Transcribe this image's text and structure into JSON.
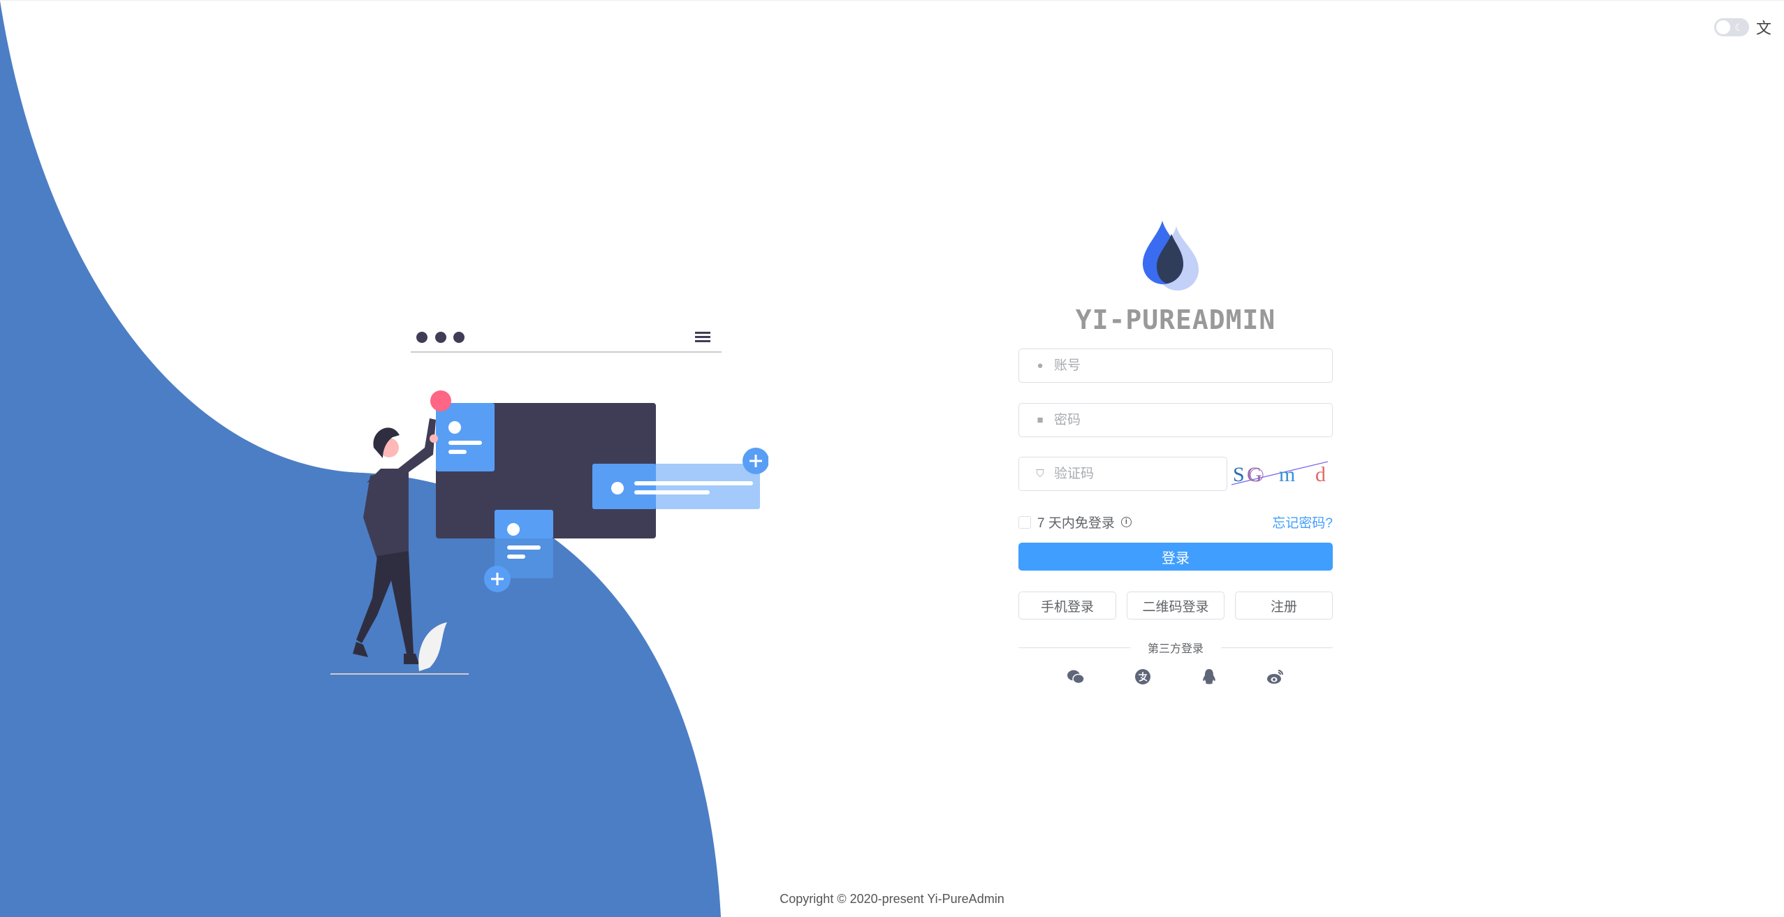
{
  "header": {
    "theme_toggle": "dark-mode-toggle",
    "language_icon": "translate-icon"
  },
  "brand": {
    "title": "YI-PUREADMIN"
  },
  "form": {
    "username_placeholder": "账号",
    "password_placeholder": "密码",
    "captcha_placeholder": "验证码",
    "captcha_text": "SG m d",
    "remember_label": "7 天内免登录",
    "forgot_label": "忘记密码?",
    "login_label": "登录",
    "phone_login": "手机登录",
    "qr_login": "二维码登录",
    "register": "注册",
    "third_party": "第三方登录"
  },
  "social": [
    "wechat-icon",
    "alipay-icon",
    "qq-icon",
    "weibo-icon"
  ],
  "colors": {
    "accent": "#409eff",
    "background_shape": "#4c7ec5"
  },
  "footer": {
    "copyright": "Copyright © 2020-present Yi-PureAdmin"
  }
}
